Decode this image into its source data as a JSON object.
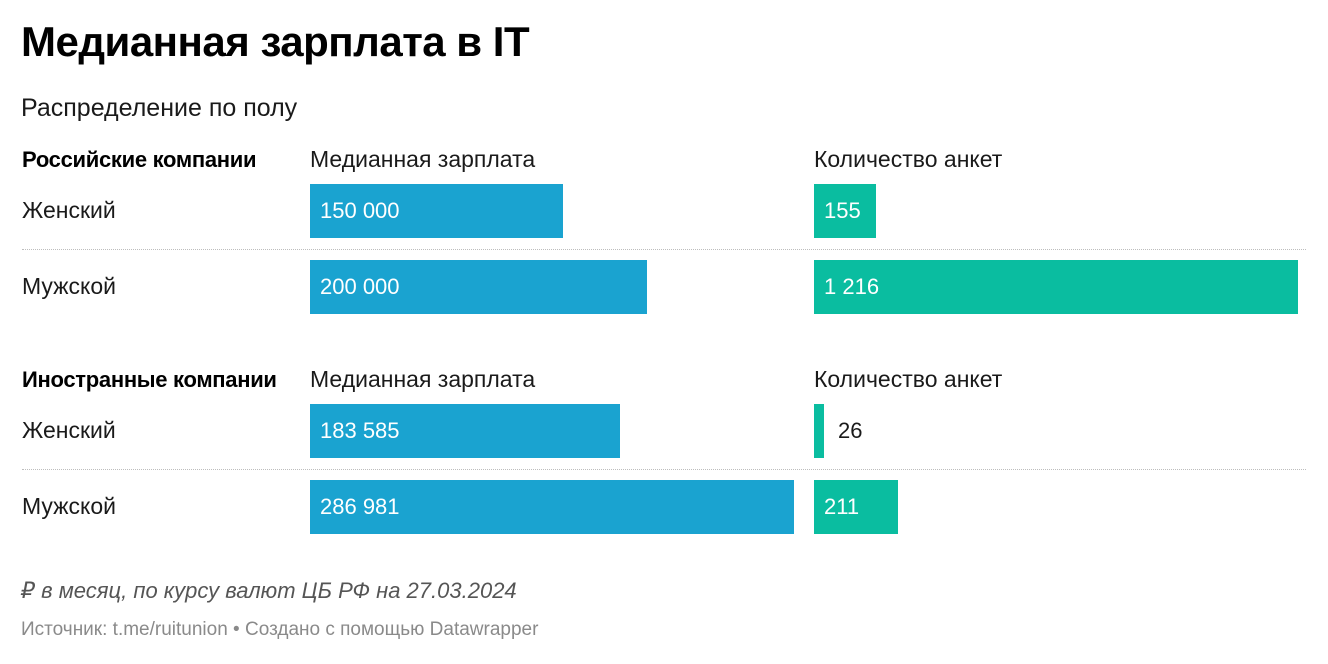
{
  "title": "Медианная зарплата в IT",
  "subtitle": "Распределение по полу",
  "note": "₽ в месяц, по курсу валют ЦБ РФ на 27.03.2024",
  "source": "Источник: t.me/ruitunion • Создано с помощью Datawrapper",
  "colors": {
    "salary": "#1aa3d0",
    "count": "#0abda0"
  },
  "chart_data": {
    "type": "bar",
    "title": "Медианная зарплата в IT",
    "subtitle": "Распределение по полу",
    "columns": [
      "Медианная зарплата",
      "Количество анкет"
    ],
    "categories": [
      "Женский",
      "Мужской"
    ],
    "groups": [
      {
        "name": "Российские компании",
        "rows": [
          {
            "category": "Женский",
            "salary": 150000,
            "salary_label": "150 000",
            "count": 155,
            "count_label": "155"
          },
          {
            "category": "Мужской",
            "salary": 200000,
            "salary_label": "200 000",
            "count": 1216,
            "count_label": "1 216"
          }
        ]
      },
      {
        "name": "Иностранные компании",
        "rows": [
          {
            "category": "Женский",
            "salary": 183585,
            "salary_label": "183 585",
            "count": 26,
            "count_label": "26"
          },
          {
            "category": "Мужской",
            "salary": 286981,
            "salary_label": "286 981",
            "count": 211,
            "count_label": "211"
          }
        ]
      }
    ],
    "salary_max": 286981,
    "count_max": 1216
  }
}
